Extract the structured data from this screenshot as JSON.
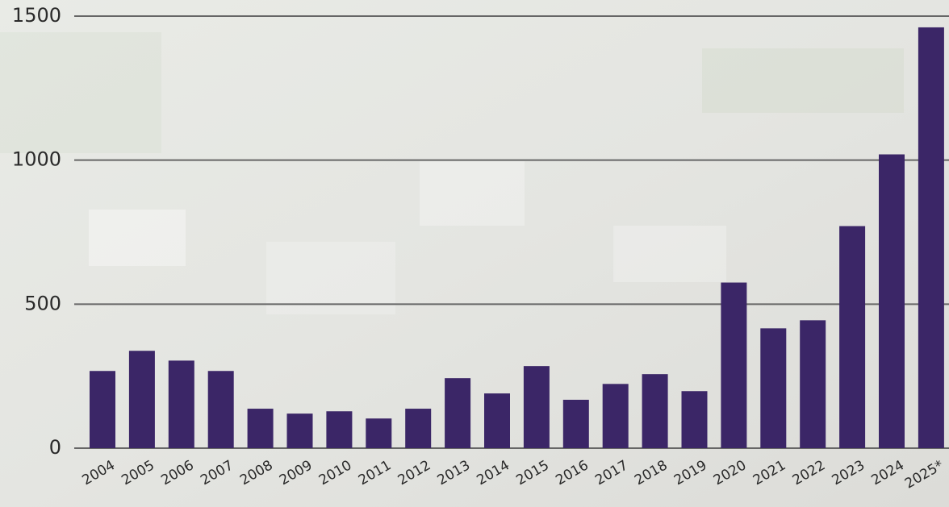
{
  "chart_data": {
    "type": "bar",
    "categories": [
      "2004",
      "2005",
      "2006",
      "2007",
      "2008",
      "2009",
      "2010",
      "2011",
      "2012",
      "2013",
      "2014",
      "2015",
      "2016",
      "2017",
      "2018",
      "2019",
      "2020",
      "2021",
      "2022",
      "2023",
      "2024",
      "2025*"
    ],
    "values": [
      268,
      338,
      304,
      268,
      137,
      120,
      128,
      103,
      137,
      243,
      190,
      285,
      168,
      223,
      257,
      198,
      575,
      416,
      444,
      771,
      1020,
      1461
    ],
    "color": "#3b2667",
    "ylim": [
      0,
      1500
    ],
    "yticks": [
      0,
      500,
      1000,
      1500
    ],
    "grid": true
  }
}
